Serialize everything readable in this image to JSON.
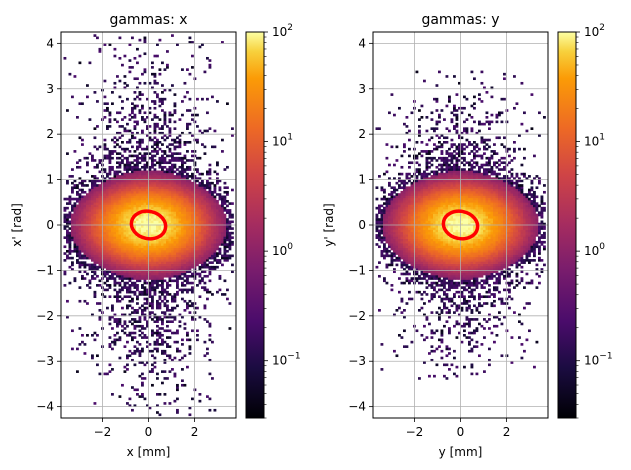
{
  "chart_data": [
    {
      "type": "heatmap",
      "title": "gammas: x",
      "xlabel": "x [mm]",
      "ylabel": "x' [rad]",
      "xlim": [
        -3.8,
        3.8
      ],
      "ylim": [
        -4.25,
        4.25
      ],
      "xticks": [
        -2,
        0,
        2
      ],
      "yticks": [
        -4,
        -3,
        -2,
        -1,
        0,
        1,
        2,
        3,
        4
      ],
      "grid": true,
      "colorbar": {
        "scale": "log",
        "range": [
          0.03,
          100
        ],
        "ticks": [
          {
            "value": 100,
            "label": "10",
            "exp": "2"
          },
          {
            "value": 10,
            "label": "10",
            "exp": "1"
          },
          {
            "value": 1,
            "label": "10",
            "exp": "0"
          },
          {
            "value": 0.1,
            "label": "10",
            "exp": "−1"
          }
        ],
        "colormap": "inferno"
      },
      "distribution": {
        "core_density_peak": 100,
        "core_half_width_mm": 1.8,
        "core_half_height_rad": 0.6,
        "halo_half_height_rad": 4.2
      },
      "ellipse": {
        "center": [
          0,
          0
        ],
        "semi_axis_x": 0.75,
        "semi_axis_y": 0.3,
        "tilt": "negative",
        "color": "#ff0000"
      }
    },
    {
      "type": "heatmap",
      "title": "gammas: y",
      "xlabel": "y [mm]",
      "ylabel": "y' [rad]",
      "xlim": [
        -3.8,
        3.8
      ],
      "ylim": [
        -4.25,
        4.25
      ],
      "xticks": [
        -2,
        0,
        2
      ],
      "yticks": [
        -4,
        -3,
        -2,
        -1,
        0,
        1,
        2,
        3,
        4
      ],
      "grid": true,
      "colorbar": {
        "scale": "log",
        "range": [
          0.03,
          100
        ],
        "ticks": [
          {
            "value": 100,
            "label": "10",
            "exp": "2"
          },
          {
            "value": 10,
            "label": "10",
            "exp": "1"
          },
          {
            "value": 1,
            "label": "10",
            "exp": "0"
          },
          {
            "value": 0.1,
            "label": "10",
            "exp": "−1"
          }
        ],
        "colormap": "inferno"
      },
      "distribution": {
        "core_density_peak": 100,
        "core_half_width_mm": 1.8,
        "core_half_height_rad": 0.6,
        "halo_half_height_rad": 3.4
      },
      "ellipse": {
        "center": [
          0,
          0
        ],
        "semi_axis_x": 0.75,
        "semi_axis_y": 0.3,
        "tilt": "negative",
        "color": "#ff0000"
      }
    }
  ]
}
